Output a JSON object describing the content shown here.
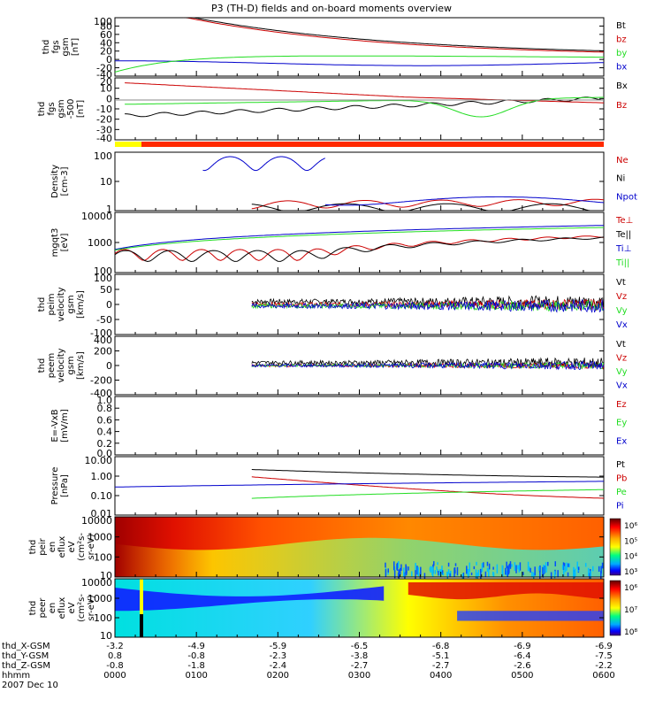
{
  "title": "P3 (TH-D) fields and on-board moments overview",
  "colors": {
    "black": "#000000",
    "red": "#cc0000",
    "green": "#22dd22",
    "blue": "#0000cc",
    "yellow": "#ffff00",
    "orangered": "#ff2a00"
  },
  "chart_data": [
    {
      "type": "line",
      "ylabel_lines": [
        "thd",
        "fgs",
        "gsm",
        "[nT]"
      ],
      "yticks": [
        "100",
        "80",
        "60",
        "40",
        "20",
        "0",
        "-20",
        "-40"
      ],
      "ylim": [
        -40,
        105
      ],
      "legend": [
        "Bt",
        "bz",
        "by",
        "bx"
      ],
      "series_colors": [
        "black",
        "red",
        "green",
        "blue"
      ]
    },
    {
      "type": "line",
      "ylabel_lines": [
        "thd",
        "fgs",
        "gsm",
        "-500",
        "[nT]"
      ],
      "yticks": [
        "20",
        "10",
        "0",
        "-10",
        "-20",
        "-30",
        "-40"
      ],
      "ylim": [
        -45,
        25
      ],
      "legend": [
        "Bx",
        "Bz"
      ],
      "series_colors": [
        "black",
        "red"
      ]
    },
    {
      "type": "line",
      "ylabel_lines": [
        "Density",
        "[cm-3]"
      ],
      "yticks": [
        "100",
        "10",
        "1"
      ],
      "scale": "log",
      "ylim": [
        0.7,
        250
      ],
      "legend": [
        "Ne",
        "Ni",
        "Npot"
      ],
      "series_colors": [
        "red",
        "black",
        "blue"
      ]
    },
    {
      "type": "line",
      "ylabel_lines": [
        "mgqt3",
        "[eV]"
      ],
      "yticks": [
        "10000",
        "1000",
        "100"
      ],
      "scale": "log",
      "ylim": [
        30,
        12000
      ],
      "legend": [
        "Te⊥",
        "Te||",
        "Ti⊥",
        "Ti||"
      ],
      "series_colors": [
        "red",
        "black",
        "blue",
        "green"
      ]
    },
    {
      "type": "line",
      "ylabel_lines": [
        "thd",
        "peim",
        "velocity",
        "gsm",
        "[km/s]"
      ],
      "yticks": [
        "100",
        "50",
        "0",
        "-50",
        "-100"
      ],
      "ylim": [
        -105,
        105
      ],
      "legend": [
        "Vt",
        "Vz",
        "Vy",
        "Vx"
      ],
      "series_colors": [
        "black",
        "red",
        "green",
        "blue"
      ]
    },
    {
      "type": "line",
      "ylabel_lines": [
        "thd",
        "peem",
        "velocity",
        "gsm",
        "[km/s]"
      ],
      "yticks": [
        "400",
        "200",
        "0",
        "-200",
        "-400"
      ],
      "ylim": [
        -420,
        420
      ],
      "legend": [
        "Vt",
        "Vz",
        "Vy",
        "Vx"
      ],
      "series_colors": [
        "black",
        "red",
        "green",
        "blue"
      ]
    },
    {
      "type": "line",
      "ylabel_lines": [
        "E=-VxB",
        "[mV/m]"
      ],
      "yticks": [
        "1.0",
        "0.8",
        "0.6",
        "0.4",
        "0.2",
        "0.0"
      ],
      "ylim": [
        0,
        1
      ],
      "legend": [
        "Ez",
        "Ey",
        "Ex"
      ],
      "series_colors": [
        "red",
        "green",
        "blue"
      ]
    },
    {
      "type": "line",
      "ylabel_lines": [
        "Pressure",
        "[nPa]"
      ],
      "yticks": [
        "10.00",
        "1.00",
        "0.10",
        "0.01"
      ],
      "scale": "log",
      "ylim": [
        0.01,
        12
      ],
      "legend": [
        "Pt",
        "Pb",
        "Pe",
        "Pi"
      ],
      "series_colors": [
        "black",
        "red",
        "green",
        "blue"
      ]
    },
    {
      "type": "heatmap",
      "ylabel_lines": [
        "thd",
        "peir",
        "en",
        "eflux",
        "eV",
        "(cm²s-",
        "sr-eV)"
      ],
      "yticks": [
        "10000",
        "1000",
        "100",
        "10"
      ],
      "colorbar_ticks": [
        "10⁶",
        "10⁵",
        "10⁴",
        "10³"
      ]
    },
    {
      "type": "heatmap",
      "ylabel_lines": [
        "thd",
        "peer",
        "en",
        "eflux",
        "eV",
        "(cm²s-",
        "sr-eV)"
      ],
      "yticks": [
        "10000",
        "1000",
        "100",
        "10"
      ],
      "colorbar_ticks": [
        "10⁶",
        "10⁷",
        "10⁸"
      ]
    }
  ],
  "xaxis": {
    "rows": [
      {
        "label": "thd_X-GSM",
        "values": [
          "-3.2",
          "-4.9",
          "-5.9",
          "-6.5",
          "-6.8",
          "-6.9",
          "-6.9"
        ]
      },
      {
        "label": "thd_Y-GSM",
        "values": [
          "0.8",
          "-0.8",
          "-2.3",
          "-3.8",
          "-5.1",
          "-6.4",
          "-7.5"
        ]
      },
      {
        "label": "thd_Z-GSM",
        "values": [
          "-0.8",
          "-1.8",
          "-2.4",
          "-2.7",
          "-2.7",
          "-2.6",
          "-2.2"
        ]
      },
      {
        "label": "hhmm",
        "values": [
          "0000",
          "0100",
          "0200",
          "0300",
          "0400",
          "0500",
          "0600"
        ]
      }
    ],
    "date": "2007 Dec 10"
  }
}
